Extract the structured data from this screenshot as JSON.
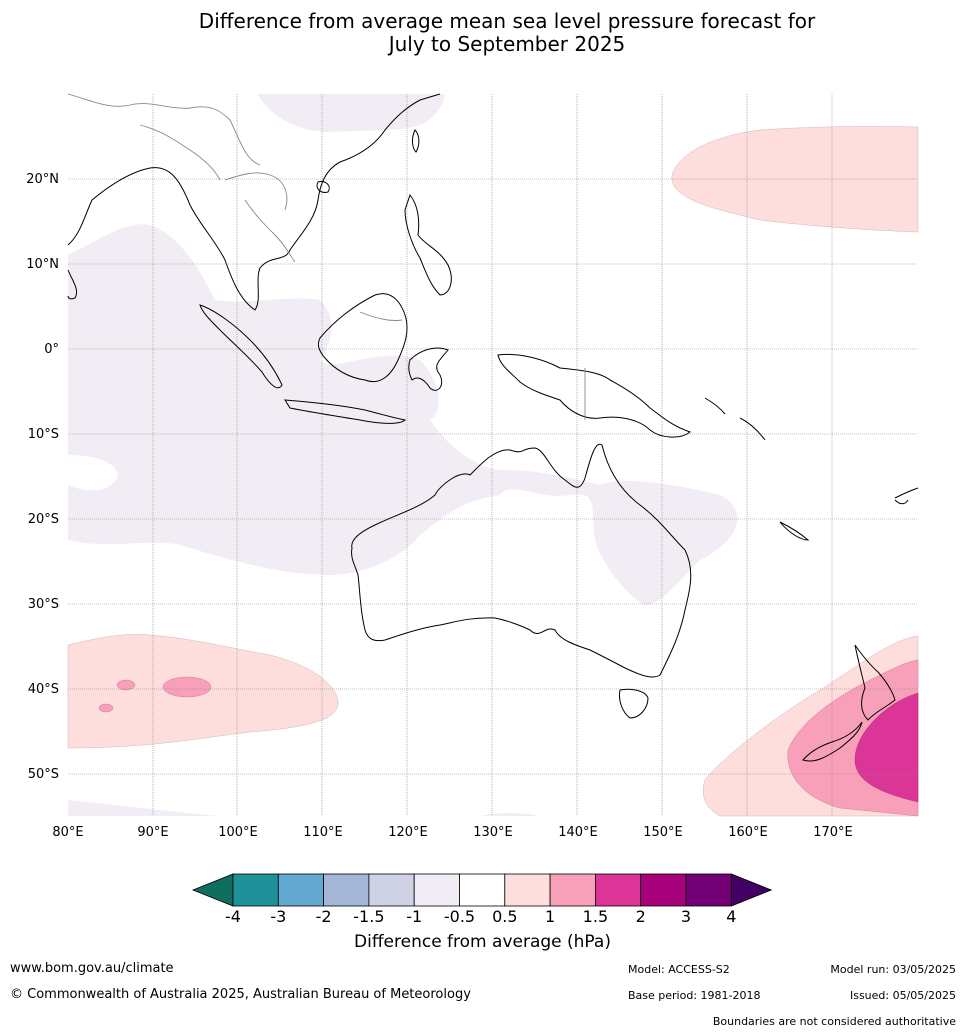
{
  "title_line1": "Difference from average mean sea level pressure forecast for",
  "title_line2": "July to September 2025",
  "lat_labels": [
    "20°N",
    "10°N",
    "0°",
    "10°S",
    "20°S",
    "30°S",
    "40°S",
    "50°S"
  ],
  "lon_labels": [
    "80°E",
    "90°E",
    "100°E",
    "110°E",
    "120°E",
    "130°E",
    "140°E",
    "150°E",
    "160°E",
    "170°E"
  ],
  "colorbar": {
    "ticks": [
      "-4",
      "-3",
      "-2",
      "-1.5",
      "-1",
      "-0.5",
      "0.5",
      "1",
      "1.5",
      "2",
      "3",
      "4"
    ],
    "colors": [
      "#0f6e5e",
      "#1e9199",
      "#63a8d0",
      "#a3b6d6",
      "#cfd1e4",
      "#f2ecf4",
      "#ffffff",
      "#fddedd",
      "#f89fb9",
      "#dc3598",
      "#a8017c",
      "#740076",
      "#420064"
    ],
    "label": "Difference from average (hPa)"
  },
  "footer": {
    "url": "www.bom.gov.au/climate",
    "copyright": "© Commonwealth of Australia 2025, Australian Bureau of Meteorology",
    "model": "Model: ACCESS-S2",
    "base_period": "Base period: 1981-2018",
    "model_run": "Model run: 03/05/2025",
    "issued": "Issued: 05/05/2025",
    "disclaimer": "Boundaries are not considered authoritative"
  }
}
